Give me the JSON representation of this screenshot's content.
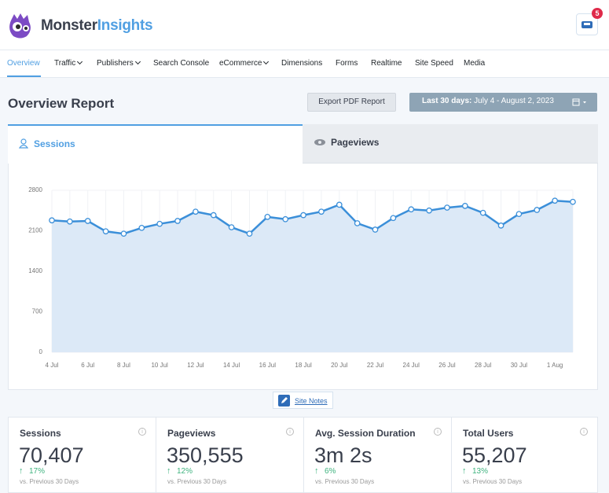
{
  "header": {
    "brand_first": "Monster",
    "brand_second": "Insights",
    "notification_count": "5"
  },
  "nav": [
    "Overview",
    "Traffic",
    "Publishers",
    "Search Console",
    "eCommerce",
    "Dimensions",
    "Forms",
    "Realtime",
    "Site Speed",
    "Media"
  ],
  "report": {
    "title": "Overview Report",
    "export_button": "Export PDF Report",
    "range_label": "Last 30 days:",
    "range_dates": "July 4 - August 2, 2023"
  },
  "tabs": [
    "Sessions",
    "Pageviews"
  ],
  "chart_data": {
    "type": "line",
    "color": "#3b8fd9",
    "fill": "#dce9f7",
    "categories": [
      "4 Jul",
      null,
      "6 Jul",
      null,
      "8 Jul",
      null,
      "10 Jul",
      null,
      "12 Jul",
      null,
      "14 Jul",
      null,
      "16 Jul",
      null,
      "18 Jul",
      null,
      "20 Jul",
      null,
      "22 Jul",
      null,
      "24 Jul",
      null,
      "26 Jul",
      null,
      "28 Jul",
      null,
      "30 Jul",
      null,
      "1 Aug",
      null
    ],
    "values": [
      2280,
      2260,
      2270,
      2090,
      2050,
      2150,
      2220,
      2270,
      2430,
      2370,
      2160,
      2050,
      2340,
      2300,
      2370,
      2430,
      2550,
      2230,
      2120,
      2320,
      2470,
      2450,
      2500,
      2530,
      2410,
      2190,
      2390,
      2460,
      2620,
      2600
    ],
    "ylim": [
      0,
      2800
    ],
    "yticks": [
      0,
      700,
      1400,
      2100,
      2800
    ],
    "grid": true
  },
  "site_notes": "Site Notes",
  "cards": [
    {
      "title": "Sessions",
      "value": "70,407",
      "change": "17%",
      "comparison": "vs. Previous 30 Days"
    },
    {
      "title": "Pageviews",
      "value": "350,555",
      "change": "12%",
      "comparison": "vs. Previous 30 Days"
    },
    {
      "title": "Avg. Session Duration",
      "value": "3m 2s",
      "change": "6%",
      "comparison": "vs. Previous 30 Days"
    },
    {
      "title": "Total Users",
      "value": "55,207",
      "change": "13%",
      "comparison": "vs. Previous 30 Days"
    }
  ]
}
